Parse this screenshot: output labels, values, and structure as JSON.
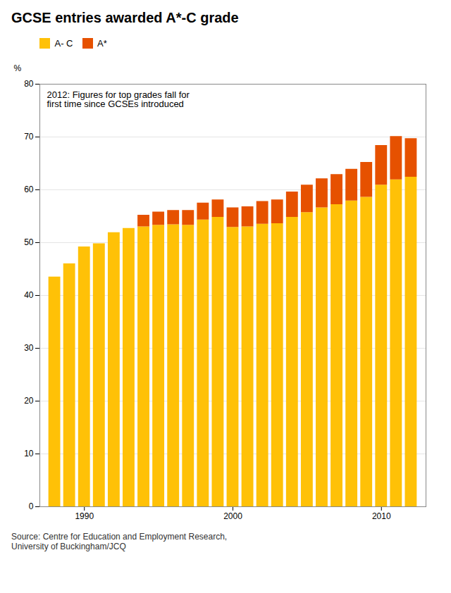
{
  "chart_data": {
    "type": "bar",
    "title": "GCSE entries awarded A*-C grade",
    "ylabel": "%",
    "x": [
      1988,
      1989,
      1990,
      1991,
      1992,
      1993,
      1994,
      1995,
      1996,
      1997,
      1998,
      1999,
      2000,
      2001,
      2002,
      2003,
      2004,
      2005,
      2006,
      2007,
      2008,
      2009,
      2010,
      2011,
      2012
    ],
    "series": [
      {
        "name": "A- C",
        "color": "#FFC107",
        "values": [
          43.5,
          46.0,
          49.2,
          49.8,
          51.9,
          52.7,
          53.0,
          53.3,
          53.4,
          53.3,
          54.3,
          54.8,
          52.9,
          53.0,
          53.5,
          53.6,
          54.8,
          55.7,
          56.6,
          57.2,
          57.9,
          58.6,
          60.9,
          61.9,
          62.4
        ]
      },
      {
        "name": "A*",
        "color": "#E65100",
        "values": [
          0.0,
          0.0,
          0.0,
          0.0,
          0.0,
          0.0,
          2.2,
          2.5,
          2.7,
          2.8,
          3.2,
          3.3,
          3.7,
          3.8,
          4.3,
          4.5,
          4.8,
          5.2,
          5.5,
          5.7,
          6.0,
          6.6,
          7.5,
          8.2,
          7.3
        ]
      }
    ],
    "stacked": true,
    "xlim": [
      1987,
      2013
    ],
    "xticks": [
      1990,
      2000,
      2010
    ],
    "ylim": [
      0,
      80
    ],
    "yticks": [
      0,
      10,
      20,
      30,
      40,
      50,
      60,
      70,
      80
    ],
    "grid": true,
    "legend": "upper left",
    "annotation": "2012: Figures for top grades fall for\nfirst time since GCSEs introduced",
    "source": "Source: Centre for Education and Employment Research,\nUniversity of Buckingham/JCQ"
  }
}
